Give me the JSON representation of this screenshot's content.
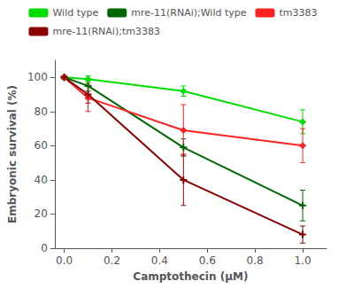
{
  "chart_data": {
    "type": "line",
    "xlabel": "Camptothecin (μM)",
    "ylabel": "Embryonic survival (%)",
    "x": [
      0.0,
      0.1,
      0.5,
      1.0
    ],
    "series": [
      {
        "name": "Wild type",
        "color": "#00dd00",
        "marker": "diamond",
        "values": [
          100,
          99,
          92,
          74
        ],
        "errors": [
          1,
          2,
          3,
          7
        ]
      },
      {
        "name": "mre-11(RNAi);Wild type",
        "color": "#006600",
        "marker": "plus",
        "values": [
          100,
          95,
          59,
          25
        ],
        "errors": [
          1,
          3,
          5,
          9
        ]
      },
      {
        "name": "tm3383",
        "color": "#ff2222",
        "marker": "diamond",
        "values": [
          100,
          88,
          69,
          60
        ],
        "errors": [
          1,
          8,
          15,
          10
        ]
      },
      {
        "name": "mre-11(RNAi);tm3383",
        "color": "#8b0000",
        "marker": "plus",
        "values": [
          100,
          90,
          40,
          8
        ],
        "errors": [
          1,
          5,
          15,
          5
        ]
      }
    ],
    "xlim": [
      -0.04,
      1.1
    ],
    "ylim": [
      0,
      110
    ],
    "xticks": [
      {
        "value": 0,
        "label": "0.0"
      },
      0.2,
      0.4,
      0.6,
      0.8,
      {
        "value": 1,
        "label": "1.0"
      }
    ],
    "yticks": [
      0,
      20,
      40,
      60,
      80,
      100
    ],
    "grid": false,
    "legend": "top"
  }
}
